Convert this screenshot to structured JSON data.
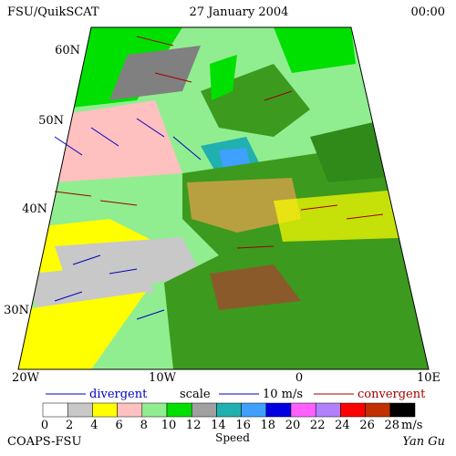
{
  "header": {
    "left": "FSU/QuikSCAT",
    "date": "27 January 2004",
    "time": "00:00"
  },
  "lat_labels": [
    "60N",
    "50N",
    "40N",
    "30N"
  ],
  "lon_labels": [
    "20W",
    "10W",
    "0",
    "10E"
  ],
  "legend": {
    "divergent": "divergent",
    "scale": "scale",
    "scale_value": "10 m/s",
    "convergent": "convergent"
  },
  "colorbar": {
    "colors": [
      "#ffffff",
      "#c8c8c8",
      "#ffff00",
      "#ffc0c0",
      "#90ee90",
      "#00e000",
      "#a0a0a0",
      "#20b0b0",
      "#40a0ff",
      "#0000e0",
      "#ff60ff",
      "#b080ff",
      "#ff0000",
      "#c03000",
      "#000000"
    ],
    "ticks": [
      0,
      2,
      4,
      6,
      8,
      10,
      12,
      14,
      16,
      18,
      20,
      22,
      24,
      26,
      28
    ],
    "unit": "m/s",
    "title": "Speed"
  },
  "footer": {
    "left": "COAPS-FSU",
    "right": "Yan Gu"
  }
}
